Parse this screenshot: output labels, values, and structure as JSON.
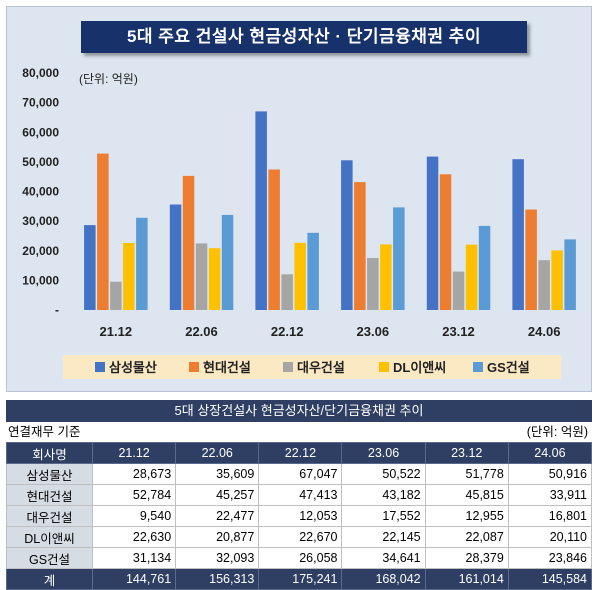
{
  "chart_title": "5대 주요 건설사 현금성자산 · 단기금융채권 추이",
  "chart_data": {
    "type": "bar",
    "unit_label": "(단위: 억원)",
    "categories": [
      "21.12",
      "22.06",
      "22.12",
      "23.06",
      "23.12",
      "24.06"
    ],
    "ylim": [
      0,
      80000
    ],
    "yticks": [
      "-",
      "10,000",
      "20,000",
      "30,000",
      "40,000",
      "50,000",
      "60,000",
      "70,000",
      "80,000"
    ],
    "series": [
      {
        "name": "삼성물산",
        "color": "#4472c4",
        "values": [
          28673,
          35609,
          67047,
          50522,
          51778,
          50916
        ]
      },
      {
        "name": "현대건설",
        "color": "#ed7d31",
        "values": [
          52784,
          45257,
          47413,
          43182,
          45815,
          33911
        ]
      },
      {
        "name": "대우건설",
        "color": "#a5a5a5",
        "values": [
          9540,
          22477,
          12053,
          17552,
          12955,
          16801
        ]
      },
      {
        "name": "DL이앤씨",
        "color": "#ffc000",
        "values": [
          22630,
          20877,
          22670,
          22145,
          22087,
          20110
        ]
      },
      {
        "name": "GS건설",
        "color": "#5b9bd5",
        "values": [
          31134,
          32093,
          26058,
          34641,
          28379,
          23846
        ]
      }
    ],
    "legend_position": "bottom",
    "grid": false
  },
  "table": {
    "title": "5대 상장건설사 현금성자산/단기금융채권 추이",
    "basis": "연결재무 기준",
    "unit": "(단위: 억원)",
    "header": [
      "회사명",
      "21.12",
      "22.06",
      "22.12",
      "23.06",
      "23.12",
      "24.06"
    ],
    "rows": [
      [
        "삼성물산",
        "28,673",
        "35,609",
        "67,047",
        "50,522",
        "51,778",
        "50,916"
      ],
      [
        "현대건설",
        "52,784",
        "45,257",
        "47,413",
        "43,182",
        "45,815",
        "33,911"
      ],
      [
        "대우건설",
        "9,540",
        "22,477",
        "12,053",
        "17,552",
        "12,955",
        "16,801"
      ],
      [
        "DL이앤씨",
        "22,630",
        "20,877",
        "22,670",
        "22,145",
        "22,087",
        "20,110"
      ],
      [
        "GS건설",
        "31,134",
        "32,093",
        "26,058",
        "34,641",
        "28,379",
        "23,846"
      ]
    ],
    "total": [
      "계",
      "144,761",
      "156,313",
      "175,241",
      "168,042",
      "161,014",
      "145,584"
    ]
  }
}
